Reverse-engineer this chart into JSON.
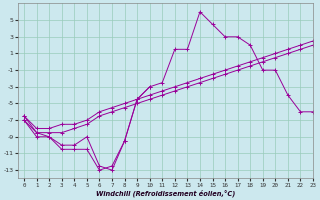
{
  "title": "",
  "xlabel": "Windchill (Refroidissement éolien,°C)",
  "bg_color": "#cce8ee",
  "grid_color": "#99ccbb",
  "line_color": "#990099",
  "x": [
    0,
    1,
    2,
    3,
    4,
    5,
    6,
    7,
    8,
    9,
    10,
    11,
    12,
    13,
    14,
    15,
    16,
    17,
    18,
    19,
    20,
    21,
    22,
    23
  ],
  "line1": [
    -7,
    -9,
    -9,
    -10.5,
    -10.5,
    -10.5,
    -13,
    -12.5,
    -9.5,
    -4.5,
    -3,
    -2.5,
    1.5,
    1.5,
    6,
    4.5,
    3,
    3,
    2,
    -1,
    -1,
    -4,
    -6,
    -6
  ],
  "line2_x": [
    0,
    1,
    2,
    3,
    4,
    5,
    6,
    7,
    8,
    9,
    10
  ],
  "line2_y": [
    -7,
    -8.5,
    -9,
    -10,
    -10,
    -9,
    -12.5,
    -13,
    -9.5,
    -4.5,
    -3
  ],
  "line3": [
    -6.5,
    -8.5,
    -8.5,
    -8.5,
    -8,
    -7.5,
    -6.5,
    -6,
    -5.5,
    -5,
    -4.5,
    -4,
    -3.5,
    -3,
    -2.5,
    -2,
    -1.5,
    -1,
    -0.5,
    0,
    0.5,
    1,
    1.5,
    2
  ],
  "line4": [
    -6.5,
    -8.0,
    -8.0,
    -7.5,
    -7.5,
    -7.0,
    -6.0,
    -5.5,
    -5.0,
    -4.5,
    -4.0,
    -3.5,
    -3.0,
    -2.5,
    -2.0,
    -1.5,
    -1.0,
    -0.5,
    0.0,
    0.5,
    1.0,
    1.5,
    2.0,
    2.5
  ],
  "ylim": [
    -14,
    7
  ],
  "xlim": [
    -0.5,
    23
  ],
  "yticks": [
    -13,
    -11,
    -9,
    -7,
    -5,
    -3,
    -1,
    1,
    3,
    5
  ],
  "xticks": [
    0,
    1,
    2,
    3,
    4,
    5,
    6,
    7,
    8,
    9,
    10,
    11,
    12,
    13,
    14,
    15,
    16,
    17,
    18,
    19,
    20,
    21,
    22,
    23
  ]
}
